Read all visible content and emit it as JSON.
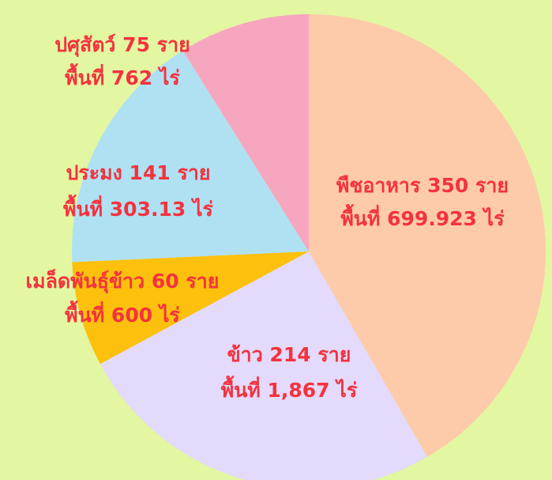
{
  "chart_data": {
    "type": "pie",
    "categories": [
      "พืชอาหาร",
      "ข้าว",
      "เมล็ดพันธุ์ข้าว",
      "ประมง",
      "ปศุสัตว์"
    ],
    "values": [
      350,
      214,
      60,
      141,
      75
    ],
    "value_labels": [
      "พืชอาหาร 350 ราย",
      "ข้าว 214 ราย",
      "เมล็ดพันธุ์ข้าว 60 ราย",
      "ประมง 141 ราย",
      "ปศุสัตว์ 75 ราย"
    ],
    "area_labels": [
      "พื้นที่ 699.923 ไร่",
      "พื้นที่ 1,867 ไร่",
      "พื้นที่ 600 ไร่",
      "พื้นที่ 303.13 ไร่",
      "พื้นที่ 762 ไร่"
    ],
    "colors": [
      "#fdcba9",
      "#e3dafc",
      "#fcc00d",
      "#afe1f3",
      "#f7a6bf"
    ],
    "label_color": "#f4323e"
  }
}
